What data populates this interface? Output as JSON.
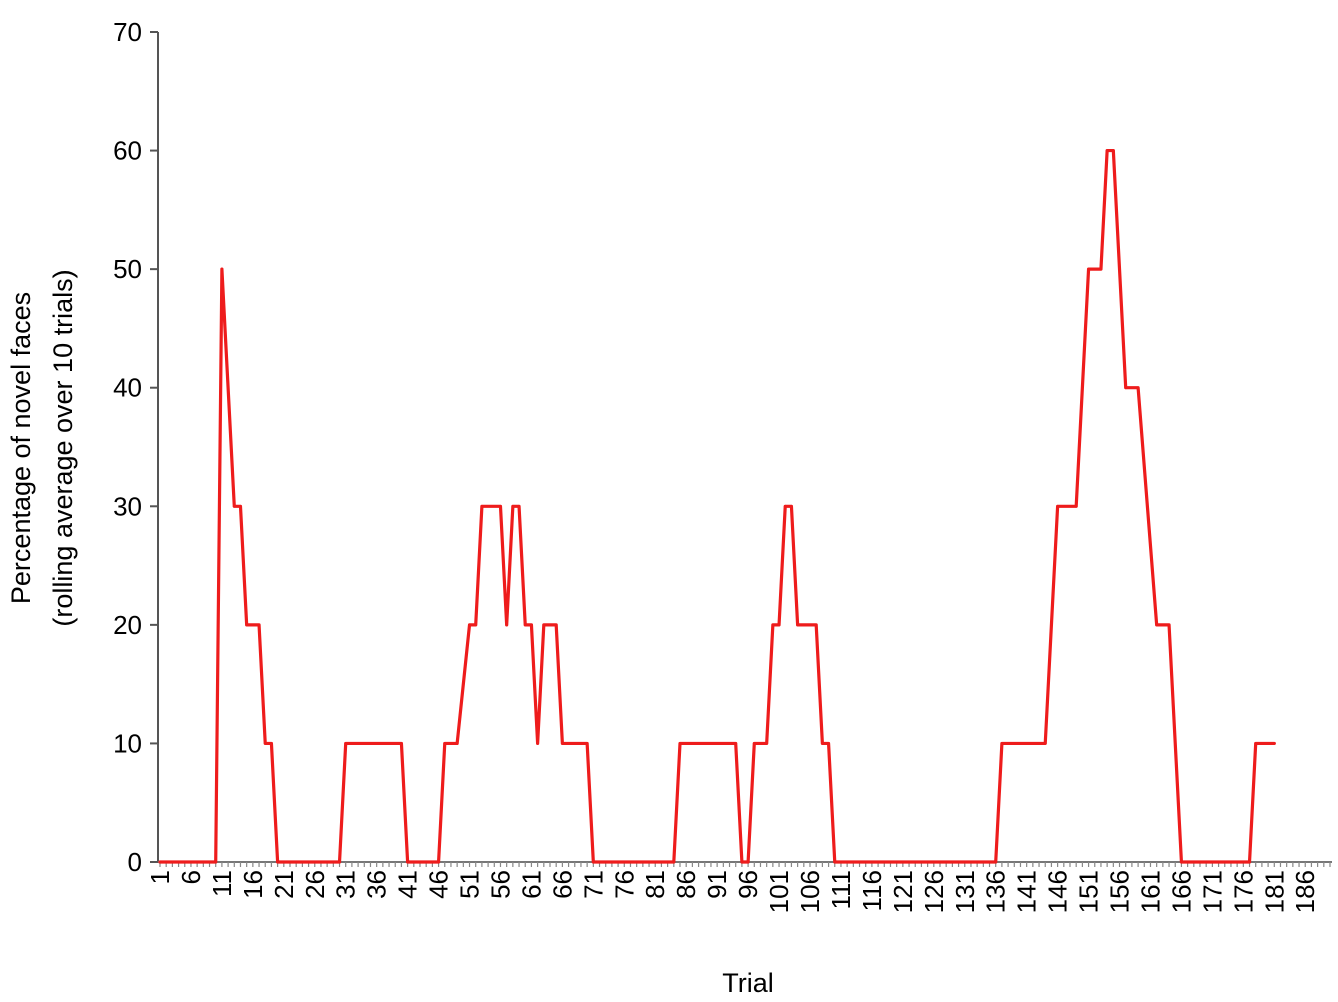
{
  "chart_data": {
    "type": "line",
    "title": "",
    "xlabel": "Trial",
    "ylabel_lines": [
      "Percentage of novel faces",
      "(rolling average over 10 trials)"
    ],
    "ylim": [
      0,
      70
    ],
    "yticks": [
      0,
      10,
      20,
      30,
      40,
      50,
      60,
      70
    ],
    "xlim": [
      1,
      190
    ],
    "xtick_labels": [
      "1",
      "6",
      "11",
      "16",
      "21",
      "26",
      "31",
      "36",
      "41",
      "46",
      "51",
      "56",
      "61",
      "66",
      "71",
      "76",
      "81",
      "86",
      "91",
      "96",
      "101",
      "106",
      "111",
      "116",
      "121",
      "126",
      "131",
      "136",
      "141",
      "146",
      "151",
      "156",
      "161",
      "166",
      "171",
      "176",
      "181",
      "186"
    ],
    "grid": false,
    "legend": "none",
    "series": [
      {
        "color": "#ee1c1c",
        "points": [
          [
            1,
            0
          ],
          [
            10,
            0
          ],
          [
            11,
            50
          ],
          [
            13,
            30
          ],
          [
            14,
            30
          ],
          [
            15,
            20
          ],
          [
            17,
            20
          ],
          [
            18,
            10
          ],
          [
            19,
            10
          ],
          [
            20,
            0
          ],
          [
            30,
            0
          ],
          [
            31,
            10
          ],
          [
            40,
            10
          ],
          [
            41,
            0
          ],
          [
            46,
            0
          ],
          [
            47,
            10
          ],
          [
            49,
            10
          ],
          [
            51,
            20
          ],
          [
            52,
            20
          ],
          [
            53,
            30
          ],
          [
            56,
            30
          ],
          [
            57,
            20
          ],
          [
            58,
            30
          ],
          [
            59,
            30
          ],
          [
            60,
            20
          ],
          [
            61,
            20
          ],
          [
            62,
            10
          ],
          [
            63,
            20
          ],
          [
            65,
            20
          ],
          [
            66,
            10
          ],
          [
            70,
            10
          ],
          [
            71,
            0
          ],
          [
            84,
            0
          ],
          [
            85,
            10
          ],
          [
            94,
            10
          ],
          [
            95,
            0
          ],
          [
            96,
            0
          ],
          [
            97,
            10
          ],
          [
            99,
            10
          ],
          [
            100,
            20
          ],
          [
            101,
            20
          ],
          [
            102,
            30
          ],
          [
            103,
            30
          ],
          [
            104,
            20
          ],
          [
            107,
            20
          ],
          [
            108,
            10
          ],
          [
            109,
            10
          ],
          [
            110,
            0
          ],
          [
            136,
            0
          ],
          [
            137,
            10
          ],
          [
            144,
            10
          ],
          [
            146,
            30
          ],
          [
            149,
            30
          ],
          [
            151,
            50
          ],
          [
            153,
            50
          ],
          [
            154,
            60
          ],
          [
            155,
            60
          ],
          [
            157,
            40
          ],
          [
            159,
            40
          ],
          [
            162,
            20
          ],
          [
            164,
            20
          ],
          [
            166,
            0
          ],
          [
            177,
            0
          ],
          [
            178,
            10
          ],
          [
            181,
            10
          ]
        ]
      }
    ]
  }
}
